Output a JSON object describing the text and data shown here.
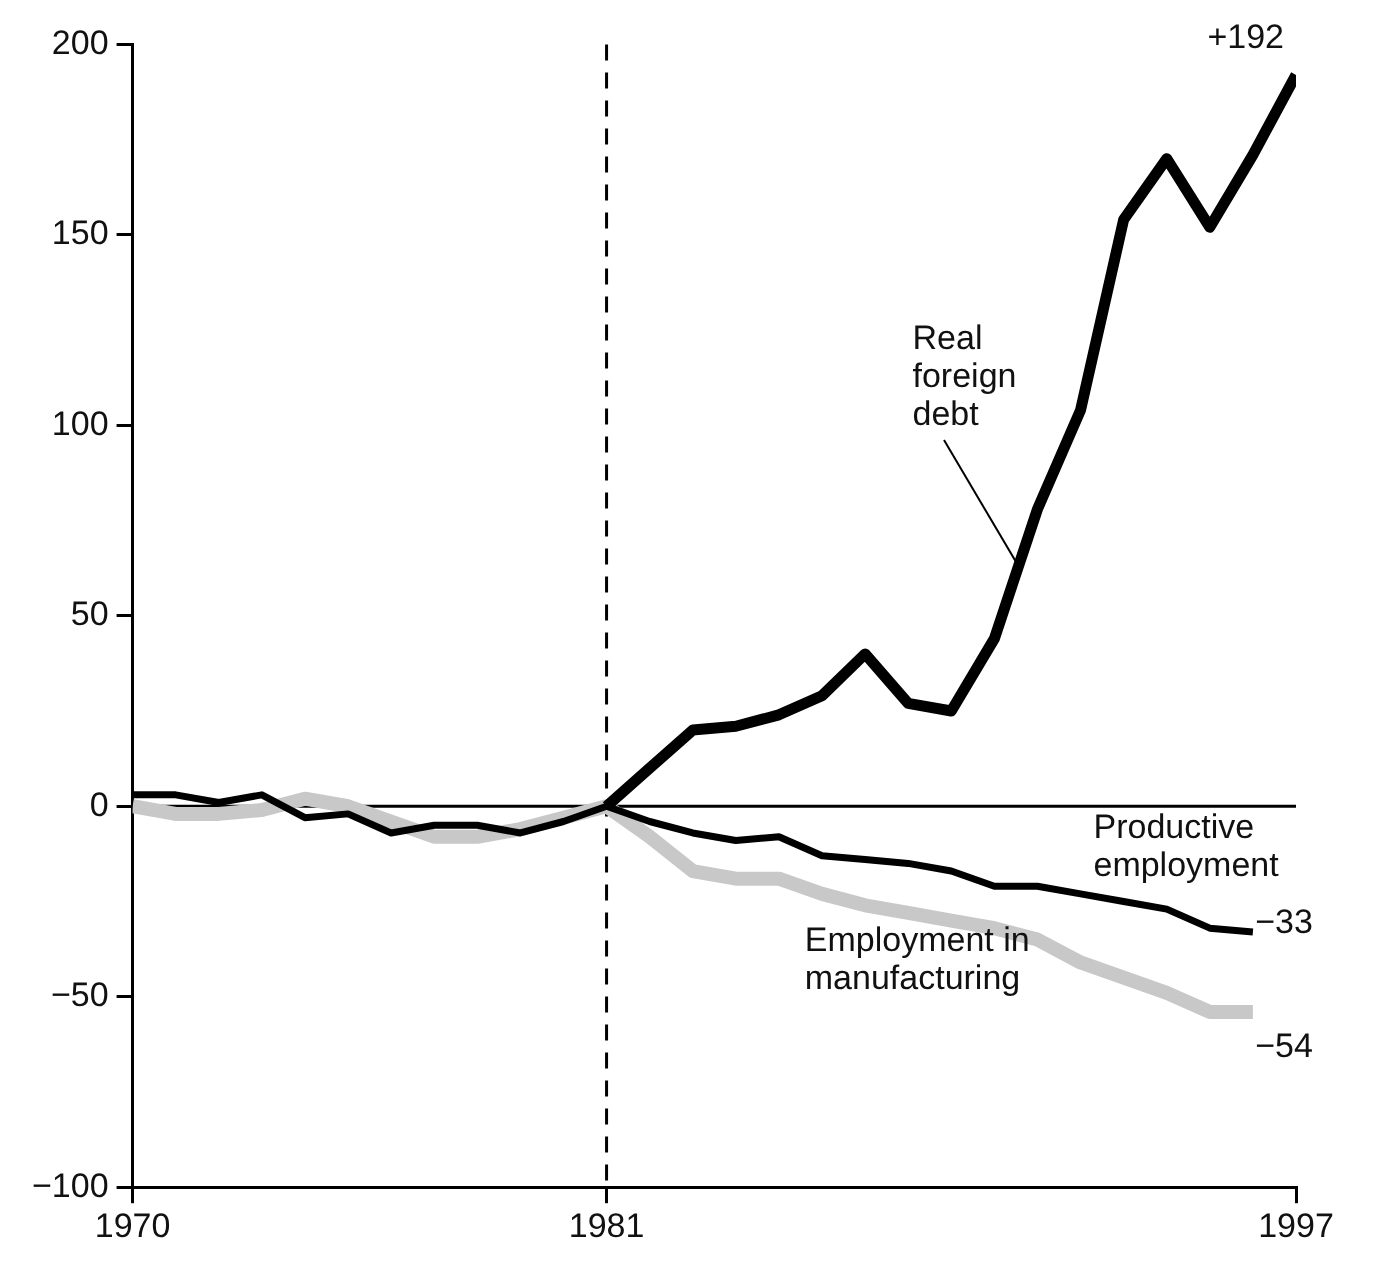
{
  "chart_data": {
    "type": "line",
    "x": [
      1970,
      1971,
      1972,
      1973,
      1974,
      1975,
      1976,
      1977,
      1978,
      1979,
      1980,
      1981,
      1982,
      1983,
      1984,
      1985,
      1986,
      1987,
      1988,
      1989,
      1990,
      1991,
      1992,
      1993,
      1994,
      1995,
      1996
    ],
    "series": [
      {
        "name": "Employment in manufacturing",
        "color": "#c8c8c8",
        "values": [
          0,
          -2,
          -2,
          -1,
          2,
          0,
          -4,
          -8,
          -8,
          -6,
          -3,
          0,
          -8,
          -17,
          -19,
          -19,
          -23,
          -26,
          -28,
          -30,
          -32,
          -35,
          -41,
          -45,
          -49,
          -54,
          -54
        ]
      },
      {
        "name": "Productive employment",
        "color": "#000000",
        "values": [
          3,
          3,
          1,
          3,
          -3,
          -2,
          -7,
          -5,
          -5,
          -7,
          -4,
          0,
          -4,
          -7,
          -9,
          -8,
          -13,
          -14,
          -15,
          -17,
          -21,
          -21,
          -23,
          -25,
          -27,
          -32,
          -33
        ]
      },
      {
        "name": "Real foreign debt",
        "color": "#000000",
        "x": [
          1981,
          1982,
          1983,
          1984,
          1985,
          1986,
          1987,
          1988,
          1989,
          1990,
          1991,
          1992,
          1993,
          1994,
          1995,
          1996,
          1997
        ],
        "values": [
          0,
          10,
          20,
          21,
          24,
          29,
          40,
          27,
          25,
          44,
          78,
          104,
          154,
          170,
          152,
          171,
          192
        ]
      }
    ],
    "xlim": [
      1970,
      1997
    ],
    "xticks": [
      1970,
      1981,
      1997
    ],
    "ylim": [
      -100,
      200
    ],
    "yticks": [
      {
        "value": -100,
        "label": "−100"
      },
      {
        "value": -50,
        "label": "−50"
      },
      0,
      50,
      100,
      150,
      200
    ],
    "ref_lines": [
      {
        "axis": "x",
        "value": 1981,
        "line_style": "dashed",
        "color": "#000000"
      },
      {
        "axis": "y",
        "value": 0,
        "line_style": "solid",
        "color": "#000000"
      }
    ],
    "annotations": [
      "+192",
      "−33",
      "−54"
    ],
    "grid": false,
    "legend": false,
    "marker": "none",
    "line_style": "solid"
  }
}
